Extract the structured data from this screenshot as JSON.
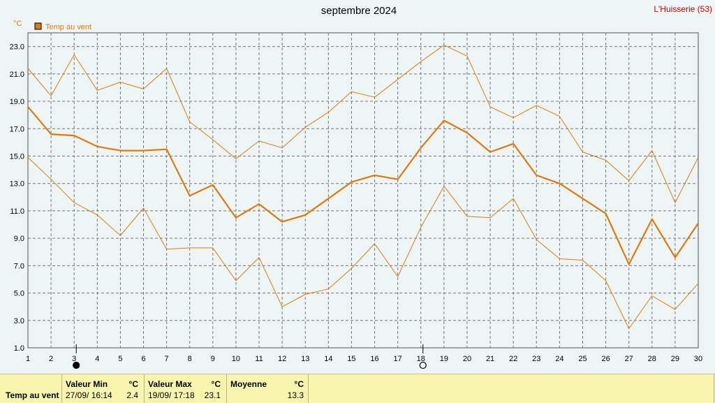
{
  "header": {
    "title": "septembre 2024",
    "station": "L'Huisserie (53)",
    "unit": "°C"
  },
  "colors": {
    "series": "#e07a10",
    "station": "#cc0000",
    "grid": "#777777",
    "background": "#eef5f5",
    "footer": "#f7f5ae"
  },
  "chart_data": {
    "type": "line",
    "title": "septembre 2024",
    "ylabel": "°C",
    "xlabel": "",
    "x": [
      1,
      2,
      3,
      4,
      5,
      6,
      7,
      8,
      9,
      10,
      11,
      12,
      13,
      14,
      15,
      16,
      17,
      18,
      19,
      20,
      21,
      22,
      23,
      24,
      25,
      26,
      27,
      28,
      29,
      30
    ],
    "xlim": [
      1,
      30
    ],
    "ylim": [
      1.0,
      24.0
    ],
    "yticks": [
      "1.0",
      "3.0",
      "5.0",
      "7.0",
      "9.0",
      "11.0",
      "13.0",
      "15.0",
      "17.0",
      "19.0",
      "21.0",
      "23.0"
    ],
    "grid": true,
    "legend": "top-left",
    "series": [
      {
        "name": "Temp au vent",
        "role": "mean",
        "values": [
          18.6,
          16.6,
          16.5,
          15.7,
          15.4,
          15.4,
          15.5,
          12.1,
          12.9,
          10.5,
          11.5,
          10.2,
          10.7,
          11.9,
          13.1,
          13.6,
          13.3,
          15.6,
          17.6,
          16.7,
          15.3,
          15.9,
          13.6,
          13.0,
          11.9,
          10.8,
          7.1,
          10.4,
          7.6,
          10.1
        ]
      },
      {
        "role": "max",
        "values": [
          21.4,
          19.4,
          22.4,
          19.8,
          20.4,
          19.9,
          21.4,
          17.5,
          16.2,
          14.8,
          16.1,
          15.6,
          17.1,
          18.2,
          19.7,
          19.3,
          20.6,
          21.9,
          23.1,
          22.3,
          18.6,
          17.8,
          18.7,
          17.9,
          15.3,
          14.7,
          13.2,
          15.4,
          11.6,
          14.9
        ]
      },
      {
        "role": "min",
        "values": [
          14.9,
          13.3,
          11.6,
          10.7,
          9.2,
          11.2,
          8.2,
          8.3,
          8.3,
          5.9,
          7.6,
          4.0,
          4.9,
          5.3,
          6.8,
          8.6,
          6.2,
          9.8,
          12.8,
          10.6,
          10.5,
          11.9,
          8.9,
          7.5,
          7.4,
          5.9,
          2.4,
          4.8,
          3.8,
          5.7
        ]
      }
    ],
    "moon": [
      {
        "day": 3,
        "phase": "new"
      },
      {
        "day": 18,
        "phase": "full"
      }
    ]
  },
  "footer": {
    "row_label": "Temp au vent",
    "min": {
      "header": "Valeur Min",
      "unit": "°C",
      "date": "27/09/ 16:14",
      "value": "2.4"
    },
    "max": {
      "header": "Valeur Max",
      "unit": "°C",
      "date": "19/09/ 17:18",
      "value": "23.1"
    },
    "mean": {
      "header": "Moyenne",
      "unit": "°C",
      "value": "13.3"
    }
  }
}
